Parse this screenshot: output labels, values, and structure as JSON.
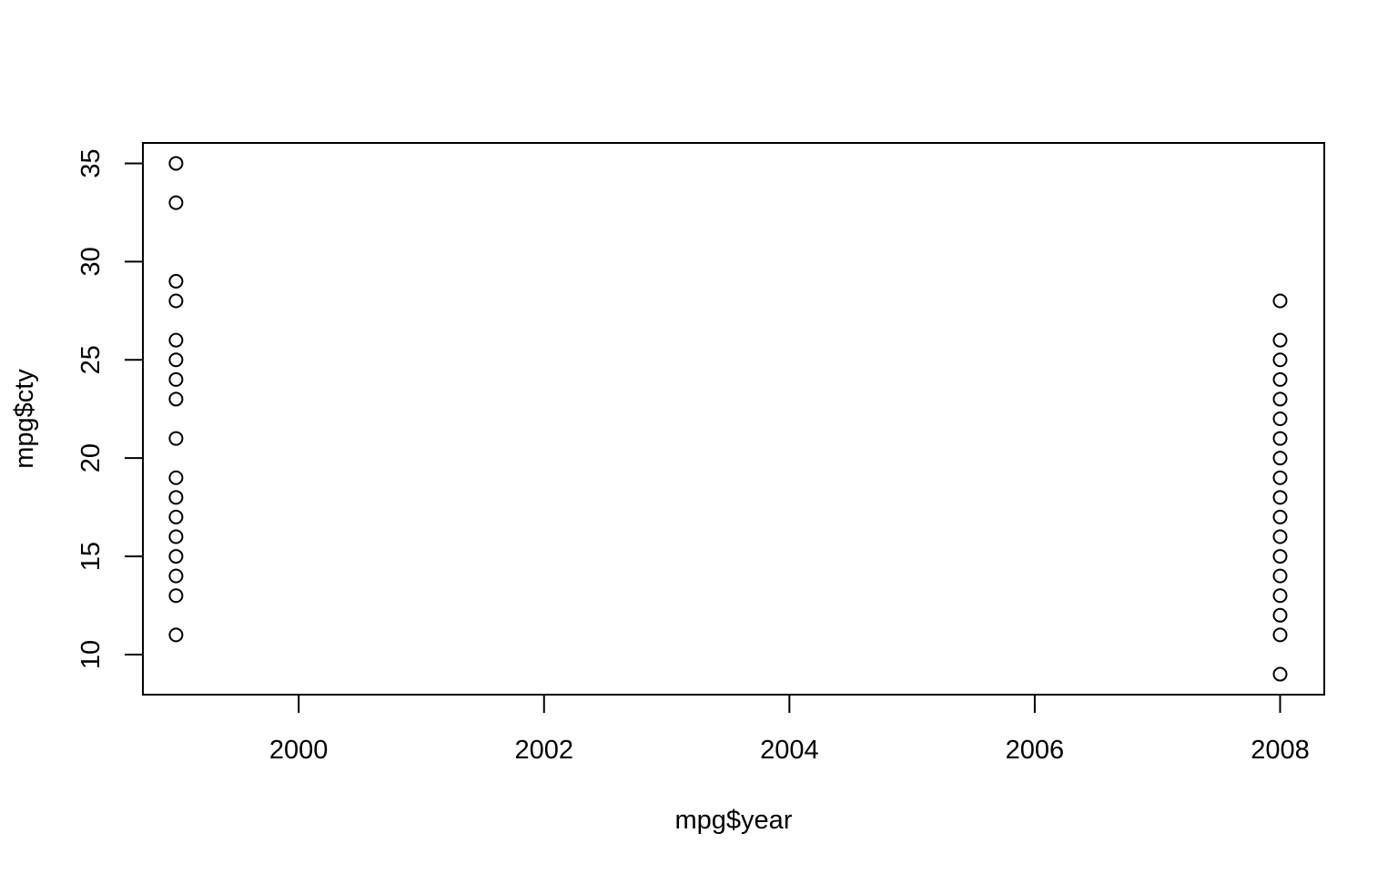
{
  "chart_data": {
    "type": "scatter",
    "title": "",
    "xlabel": "mpg$year",
    "ylabel": "mpg$cty",
    "xlim": [
      1998.73,
      2008.36
    ],
    "ylim": [
      7.96,
      36.04
    ],
    "x_ticks": [
      2000,
      2002,
      2004,
      2006,
      2008
    ],
    "y_ticks": [
      10,
      15,
      20,
      25,
      30,
      35
    ],
    "grid": false,
    "legend": "none",
    "marker": "open-circle",
    "colors": {
      "points": "#000000",
      "axes": "#000000",
      "background": "#ffffff"
    },
    "series": [
      {
        "points": [
          {
            "x": 1999,
            "y": 35
          },
          {
            "x": 1999,
            "y": 33
          },
          {
            "x": 1999,
            "y": 29
          },
          {
            "x": 1999,
            "y": 28
          },
          {
            "x": 1999,
            "y": 26
          },
          {
            "x": 1999,
            "y": 25
          },
          {
            "x": 1999,
            "y": 24
          },
          {
            "x": 1999,
            "y": 23
          },
          {
            "x": 1999,
            "y": 21
          },
          {
            "x": 1999,
            "y": 19
          },
          {
            "x": 1999,
            "y": 18
          },
          {
            "x": 1999,
            "y": 17
          },
          {
            "x": 1999,
            "y": 16
          },
          {
            "x": 1999,
            "y": 15
          },
          {
            "x": 1999,
            "y": 14
          },
          {
            "x": 1999,
            "y": 13
          },
          {
            "x": 1999,
            "y": 11
          },
          {
            "x": 2008,
            "y": 28
          },
          {
            "x": 2008,
            "y": 26
          },
          {
            "x": 2008,
            "y": 25
          },
          {
            "x": 2008,
            "y": 24
          },
          {
            "x": 2008,
            "y": 23
          },
          {
            "x": 2008,
            "y": 22
          },
          {
            "x": 2008,
            "y": 21
          },
          {
            "x": 2008,
            "y": 20
          },
          {
            "x": 2008,
            "y": 19
          },
          {
            "x": 2008,
            "y": 18
          },
          {
            "x": 2008,
            "y": 17
          },
          {
            "x": 2008,
            "y": 16
          },
          {
            "x": 2008,
            "y": 15
          },
          {
            "x": 2008,
            "y": 14
          },
          {
            "x": 2008,
            "y": 13
          },
          {
            "x": 2008,
            "y": 12
          },
          {
            "x": 2008,
            "y": 11
          },
          {
            "x": 2008,
            "y": 9
          }
        ]
      }
    ]
  }
}
